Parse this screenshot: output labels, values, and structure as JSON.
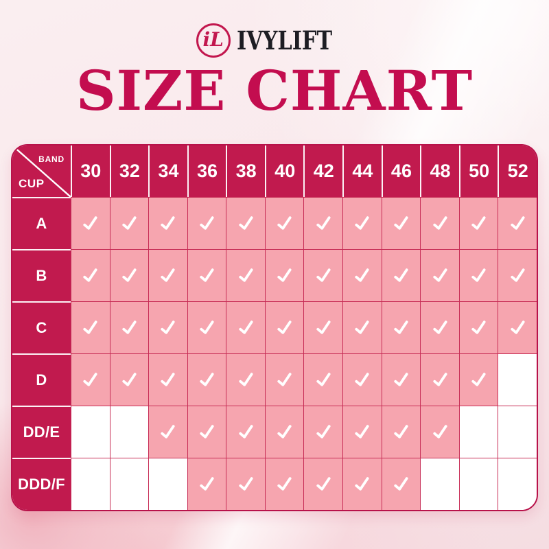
{
  "brand": {
    "monogram": "iL",
    "name": "IVYLIFT"
  },
  "title": "SIZE CHART",
  "colors": {
    "accent": "#C11A4E",
    "title": "#C30D4F",
    "available_cell": "#F6A5AF",
    "unavailable_cell": "#FFFFFF",
    "grid_border": "#C72C55",
    "check": "#FFFFFF",
    "background": "#F9E9EC"
  },
  "chart_data": {
    "type": "table",
    "title": "SIZE CHART",
    "corner": {
      "top_right_label": "BAND",
      "bottom_left_label": "CUP"
    },
    "columns": [
      "30",
      "32",
      "34",
      "36",
      "38",
      "40",
      "42",
      "44",
      "46",
      "48",
      "50",
      "52"
    ],
    "rows": [
      {
        "cup": "A",
        "available": [
          1,
          1,
          1,
          1,
          1,
          1,
          1,
          1,
          1,
          1,
          1,
          1
        ]
      },
      {
        "cup": "B",
        "available": [
          1,
          1,
          1,
          1,
          1,
          1,
          1,
          1,
          1,
          1,
          1,
          1
        ]
      },
      {
        "cup": "C",
        "available": [
          1,
          1,
          1,
          1,
          1,
          1,
          1,
          1,
          1,
          1,
          1,
          1
        ]
      },
      {
        "cup": "D",
        "available": [
          1,
          1,
          1,
          1,
          1,
          1,
          1,
          1,
          1,
          1,
          1,
          0
        ]
      },
      {
        "cup": "DD/E",
        "available": [
          0,
          0,
          1,
          1,
          1,
          1,
          1,
          1,
          1,
          1,
          0,
          0
        ]
      },
      {
        "cup": "DDD/F",
        "available": [
          0,
          0,
          0,
          1,
          1,
          1,
          1,
          1,
          1,
          0,
          0,
          0
        ]
      }
    ],
    "check_icon": "check-mark"
  }
}
